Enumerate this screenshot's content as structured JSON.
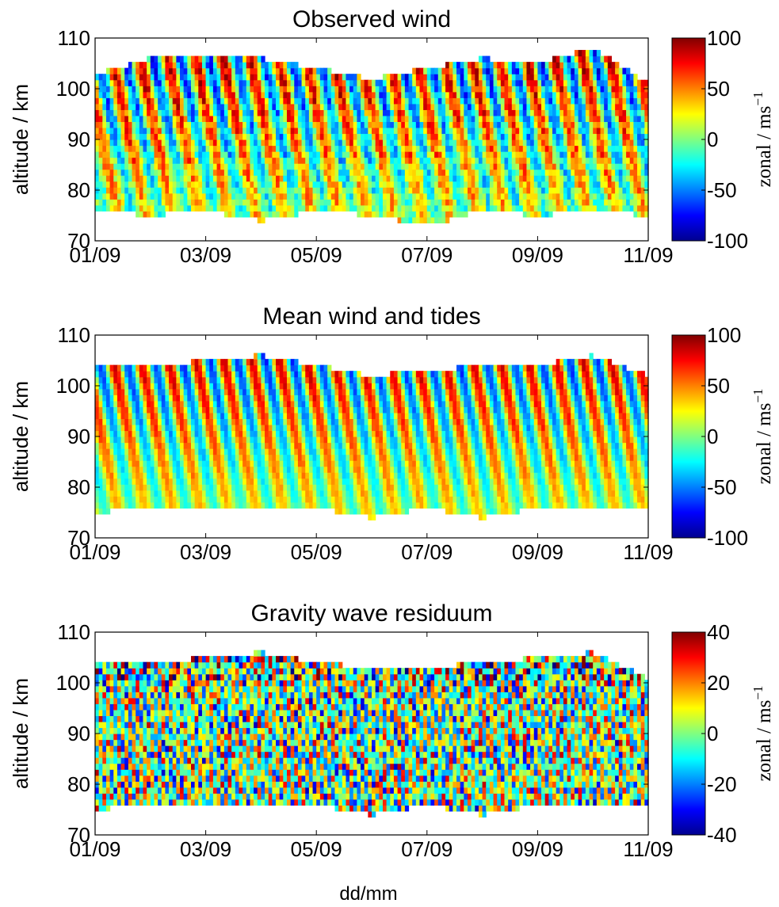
{
  "figure": {
    "xlabel": "dd/mm"
  },
  "chart_data": [
    {
      "type": "heatmap",
      "title": "Observed wind",
      "xlabel": "",
      "ylabel": "altitude / km",
      "x_ticks": [
        "01/09",
        "03/09",
        "05/09",
        "07/09",
        "09/09",
        "11/09"
      ],
      "xlim": [
        "01/09",
        "11/09"
      ],
      "y_ticks": [
        70,
        80,
        90,
        100,
        110
      ],
      "ylim": [
        70,
        110
      ],
      "colorbar": {
        "label_main": "zonal / ms",
        "label_sup": "−1",
        "range": [
          -100,
          100
        ],
        "ticks": [
          100,
          50,
          0,
          -50,
          -100
        ],
        "colormap": "jet"
      },
      "data_coverage_km": [
        74,
        108
      ],
      "description": "measured zonal wind; tilted bands from upper-left to lower-right with up to ~100 m/s near 95-100 km and ~-70 m/s near 80 km"
    },
    {
      "type": "heatmap",
      "title": "Mean wind and tides",
      "xlabel": "",
      "ylabel": "altitude / km",
      "x_ticks": [
        "01/09",
        "03/09",
        "05/09",
        "07/09",
        "09/09",
        "11/09"
      ],
      "xlim": [
        "01/09",
        "11/09"
      ],
      "y_ticks": [
        70,
        80,
        90,
        100,
        110
      ],
      "ylim": [
        70,
        110
      ],
      "colorbar": {
        "label_main": "zonal / ms",
        "label_sup": "−1",
        "range": [
          -100,
          100
        ],
        "ticks": [
          100,
          50,
          0,
          -50,
          -100
        ],
        "colormap": "jet"
      },
      "data_coverage_km": [
        74,
        106
      ],
      "description": "smooth tidal bands, maxima ~90 m/s near 98 km, minima ~-70 m/s near 78 km"
    },
    {
      "type": "heatmap",
      "title": "Gravity wave residuum",
      "xlabel": "",
      "ylabel": "altitude / km",
      "x_ticks": [
        "01/09",
        "03/09",
        "05/09",
        "07/09",
        "09/09",
        "11/09"
      ],
      "xlim": [
        "01/09",
        "11/09"
      ],
      "y_ticks": [
        70,
        80,
        90,
        100,
        110
      ],
      "ylim": [
        70,
        110
      ],
      "colorbar": {
        "label_main": "zonal / ms",
        "label_sup": "−1",
        "range": [
          -40,
          40
        ],
        "ticks": [
          40,
          20,
          0,
          -20,
          -40
        ],
        "colormap": "jet"
      },
      "data_coverage_km": [
        74,
        106
      ],
      "description": "small-scale noisy residual around 0 with ±40 m/s extremes near the top"
    }
  ]
}
